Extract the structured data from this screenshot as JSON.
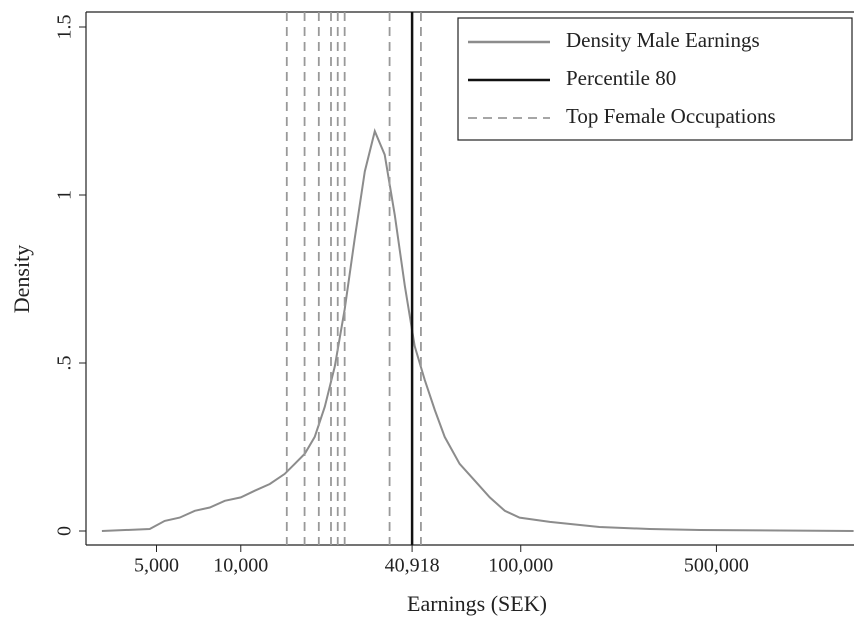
{
  "chart_data": {
    "type": "line",
    "x_label": "Earnings (SEK)",
    "y_label": "Density",
    "xlog": true,
    "xlim": [
      2800,
      1550000
    ],
    "ylim": [
      0,
      1.5
    ],
    "xticks": [
      {
        "value": 5000,
        "label": "5,000"
      },
      {
        "value": 10000,
        "label": "10,000"
      },
      {
        "value": 40918,
        "label": "40,918"
      },
      {
        "value": 100000,
        "label": "100,000"
      },
      {
        "value": 500000,
        "label": "500,000"
      }
    ],
    "yticks": [
      0,
      {
        "value": 0.5,
        "label": ".5"
      },
      1,
      1.5
    ],
    "legend": "top-right",
    "series": [
      {
        "name": "Density Male Earnings",
        "color": "#8c8c8c",
        "style": "solid",
        "x": [
          3190,
          4730,
          5350,
          6050,
          6850,
          7750,
          8770,
          10000,
          11220,
          12700,
          14350,
          15600,
          16930,
          18370,
          19950,
          21660,
          23500,
          25530,
          27730,
          30100,
          32670,
          35480,
          38520,
          41800,
          45400,
          49300,
          53500,
          60500,
          68500,
          77500,
          87700,
          99100,
          127000,
          191000,
          289000,
          436000,
          1545000
        ],
        "values": [
          0.0,
          0.006,
          0.03,
          0.04,
          0.06,
          0.07,
          0.09,
          0.1,
          0.12,
          0.14,
          0.17,
          0.2,
          0.23,
          0.28,
          0.37,
          0.49,
          0.66,
          0.87,
          1.07,
          1.19,
          1.12,
          0.94,
          0.73,
          0.55,
          0.45,
          0.36,
          0.28,
          0.2,
          0.15,
          0.1,
          0.06,
          0.04,
          0.027,
          0.012,
          0.006,
          0.003,
          0.0
        ]
      },
      {
        "name": "Percentile 80",
        "color": "#111111",
        "style": "solid",
        "xvalues": [
          40918
        ]
      },
      {
        "name": "Top Female Occupations",
        "color": "#999999",
        "style": "dashed",
        "xvalues": [
          14600,
          16900,
          19000,
          21000,
          22200,
          23500,
          34000,
          44000
        ]
      }
    ]
  }
}
